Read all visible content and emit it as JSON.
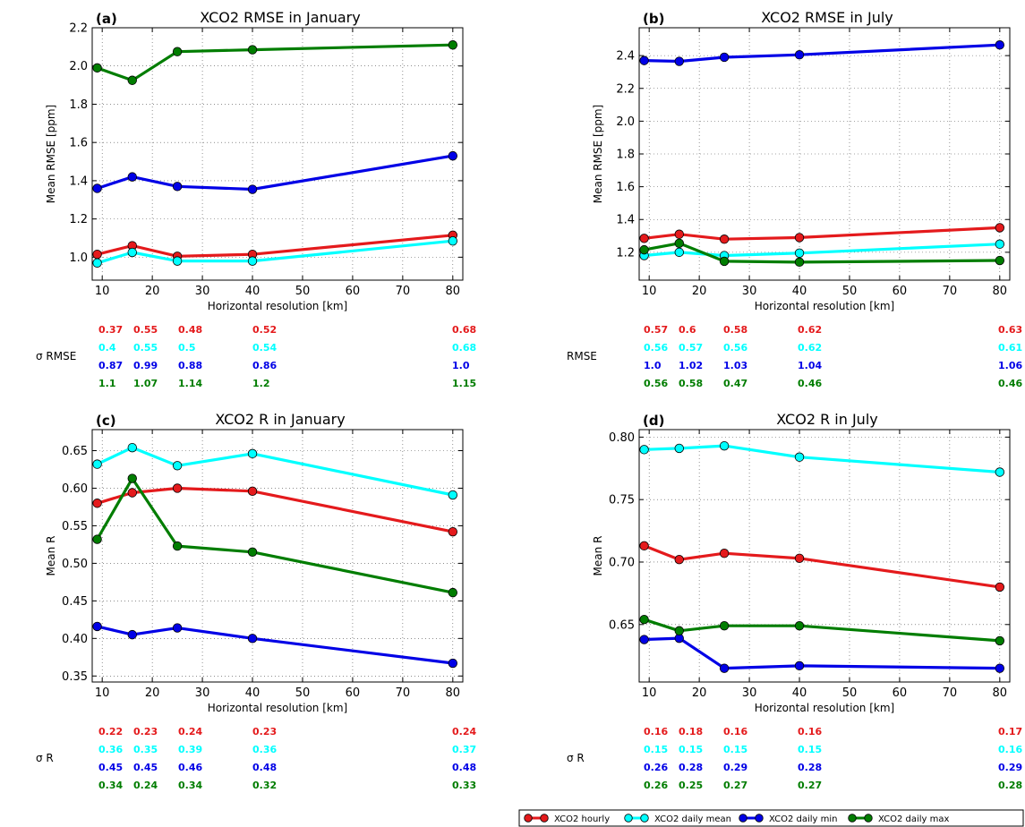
{
  "colors": {
    "hourly": "#e41a1c",
    "daily_mean": "#00ffff",
    "daily_min": "#0000e6",
    "daily_max": "#007d00"
  },
  "legend": {
    "items": [
      {
        "label": "XCO2 hourly",
        "color": "#e41a1c"
      },
      {
        "label": "XCO2 daily mean",
        "color": "#00ffff"
      },
      {
        "label": "XCO2 daily min",
        "color": "#0000e6"
      },
      {
        "label": "XCO2 daily max",
        "color": "#007d00"
      }
    ]
  },
  "chart_data": [
    {
      "panel": "(a)",
      "type": "line",
      "title": "XCO2 RMSE in January",
      "xlabel": "Horizontal resolution [km]",
      "ylabel": "Mean RMSE [ppm]",
      "xlim": [
        8,
        82
      ],
      "ylim": [
        0.88,
        2.2
      ],
      "xticks": [
        10,
        20,
        30,
        40,
        50,
        60,
        70,
        80
      ],
      "yticks": [
        1.0,
        1.2,
        1.4,
        1.6,
        1.8,
        2.0,
        2.2
      ],
      "ytick_labels": [
        "1.0",
        "1.2",
        "1.4",
        "1.6",
        "1.8",
        "2.0",
        "2.2"
      ],
      "grid": true,
      "x": [
        9,
        16,
        25,
        40,
        80
      ],
      "series": [
        {
          "name": "XCO2 hourly",
          "color": "#e41a1c",
          "values": [
            1.015,
            1.06,
            1.005,
            1.015,
            1.115
          ]
        },
        {
          "name": "XCO2 daily mean",
          "color": "#00ffff",
          "values": [
            0.97,
            1.025,
            0.98,
            0.98,
            1.085
          ]
        },
        {
          "name": "XCO2 daily min",
          "color": "#0000e6",
          "values": [
            1.36,
            1.42,
            1.37,
            1.355,
            1.53
          ]
        },
        {
          "name": "XCO2 daily max",
          "color": "#007d00",
          "values": [
            1.99,
            1.925,
            2.075,
            2.085,
            2.11
          ]
        }
      ],
      "sigma_label": "σ RMSE",
      "sigma": [
        {
          "color": "#e41a1c",
          "values": [
            "0.37",
            "0.55",
            "0.48",
            "0.52",
            "0.68"
          ]
        },
        {
          "color": "#00ffff",
          "values": [
            "0.4",
            "0.55",
            "0.5",
            "0.54",
            "0.68"
          ]
        },
        {
          "color": "#0000e6",
          "values": [
            "0.87",
            "0.99",
            "0.88",
            "0.86",
            "1.0"
          ]
        },
        {
          "color": "#007d00",
          "values": [
            "1.1",
            "1.07",
            "1.14",
            "1.2",
            "1.15"
          ]
        }
      ]
    },
    {
      "panel": "(b)",
      "type": "line",
      "title": "XCO2 RMSE in July",
      "xlabel": "Horizontal resolution [km]",
      "ylabel": "Mean RMSE [ppm]",
      "xlim": [
        8,
        82
      ],
      "ylim": [
        1.03,
        2.57
      ],
      "xticks": [
        10,
        20,
        30,
        40,
        50,
        60,
        70,
        80
      ],
      "yticks": [
        1.2,
        1.4,
        1.6,
        1.8,
        2.0,
        2.2,
        2.4
      ],
      "ytick_labels": [
        "1.2",
        "1.4",
        "1.6",
        "1.8",
        "2.0",
        "2.2",
        "2.4"
      ],
      "grid": true,
      "x": [
        9,
        16,
        25,
        40,
        80
      ],
      "series": [
        {
          "name": "XCO2 hourly",
          "color": "#e41a1c",
          "values": [
            1.285,
            1.31,
            1.28,
            1.29,
            1.35
          ]
        },
        {
          "name": "XCO2 daily mean",
          "color": "#00ffff",
          "values": [
            1.18,
            1.2,
            1.18,
            1.195,
            1.25
          ]
        },
        {
          "name": "XCO2 daily min",
          "color": "#0000e6",
          "values": [
            2.37,
            2.365,
            2.39,
            2.405,
            2.465
          ]
        },
        {
          "name": "XCO2 daily max",
          "color": "#007d00",
          "values": [
            1.215,
            1.255,
            1.145,
            1.14,
            1.15
          ]
        }
      ],
      "sigma_label": "RMSE",
      "sigma": [
        {
          "color": "#e41a1c",
          "values": [
            "0.57",
            "0.6",
            "0.58",
            "0.62",
            "0.63"
          ]
        },
        {
          "color": "#00ffff",
          "values": [
            "0.56",
            "0.57",
            "0.56",
            "0.62",
            "0.61"
          ]
        },
        {
          "color": "#0000e6",
          "values": [
            "1.0",
            "1.02",
            "1.03",
            "1.04",
            "1.06"
          ]
        },
        {
          "color": "#007d00",
          "values": [
            "0.56",
            "0.58",
            "0.47",
            "0.46",
            "0.46"
          ]
        }
      ]
    },
    {
      "panel": "(c)",
      "type": "line",
      "title": "XCO2 R in January",
      "xlabel": "Horizontal resolution [km]",
      "ylabel": "Mean R",
      "xlim": [
        8,
        82
      ],
      "ylim": [
        0.342,
        0.678
      ],
      "xticks": [
        10,
        20,
        30,
        40,
        50,
        60,
        70,
        80
      ],
      "yticks": [
        0.35,
        0.4,
        0.45,
        0.5,
        0.55,
        0.6,
        0.65
      ],
      "ytick_labels": [
        "0.35",
        "0.40",
        "0.45",
        "0.50",
        "0.55",
        "0.60",
        "0.65"
      ],
      "grid": true,
      "x": [
        9,
        16,
        25,
        40,
        80
      ],
      "series": [
        {
          "name": "XCO2 hourly",
          "color": "#e41a1c",
          "values": [
            0.58,
            0.594,
            0.6,
            0.596,
            0.542
          ]
        },
        {
          "name": "XCO2 daily mean",
          "color": "#00ffff",
          "values": [
            0.632,
            0.654,
            0.63,
            0.646,
            0.591
          ]
        },
        {
          "name": "XCO2 daily min",
          "color": "#0000e6",
          "values": [
            0.416,
            0.405,
            0.414,
            0.4,
            0.367
          ]
        },
        {
          "name": "XCO2 daily max",
          "color": "#007d00",
          "values": [
            0.532,
            0.613,
            0.523,
            0.515,
            0.461
          ]
        }
      ],
      "sigma_label": "σ R",
      "sigma": [
        {
          "color": "#e41a1c",
          "values": [
            "0.22",
            "0.23",
            "0.24",
            "0.23",
            "0.24"
          ]
        },
        {
          "color": "#00ffff",
          "values": [
            "0.36",
            "0.35",
            "0.39",
            "0.36",
            "0.37"
          ]
        },
        {
          "color": "#0000e6",
          "values": [
            "0.45",
            "0.45",
            "0.46",
            "0.48",
            "0.48"
          ]
        },
        {
          "color": "#007d00",
          "values": [
            "0.34",
            "0.24",
            "0.34",
            "0.32",
            "0.33"
          ]
        }
      ]
    },
    {
      "panel": "(d)",
      "type": "line",
      "title": "XCO2 R in July",
      "xlabel": "Horizontal resolution [km]",
      "ylabel": "Mean R",
      "xlim": [
        8,
        82
      ],
      "ylim": [
        0.604,
        0.806
      ],
      "xticks": [
        10,
        20,
        30,
        40,
        50,
        60,
        70,
        80
      ],
      "yticks": [
        0.65,
        0.7,
        0.75,
        0.8
      ],
      "ytick_labels": [
        "0.65",
        "0.70",
        "0.75",
        "0.80"
      ],
      "grid": true,
      "x": [
        9,
        16,
        25,
        40,
        80
      ],
      "series": [
        {
          "name": "XCO2 hourly",
          "color": "#e41a1c",
          "values": [
            0.713,
            0.702,
            0.707,
            0.703,
            0.68
          ]
        },
        {
          "name": "XCO2 daily mean",
          "color": "#00ffff",
          "values": [
            0.79,
            0.791,
            0.793,
            0.784,
            0.772
          ]
        },
        {
          "name": "XCO2 daily min",
          "color": "#0000e6",
          "values": [
            0.638,
            0.639,
            0.615,
            0.617,
            0.615
          ]
        },
        {
          "name": "XCO2 daily max",
          "color": "#007d00",
          "values": [
            0.654,
            0.645,
            0.649,
            0.649,
            0.637
          ]
        }
      ],
      "sigma_label": "σ R",
      "sigma": [
        {
          "color": "#e41a1c",
          "values": [
            "0.16",
            "0.18",
            "0.16",
            "0.16",
            "0.17"
          ]
        },
        {
          "color": "#00ffff",
          "values": [
            "0.15",
            "0.15",
            "0.15",
            "0.15",
            "0.16"
          ]
        },
        {
          "color": "#0000e6",
          "values": [
            "0.26",
            "0.28",
            "0.29",
            "0.28",
            "0.29"
          ]
        },
        {
          "color": "#007d00",
          "values": [
            "0.26",
            "0.25",
            "0.27",
            "0.27",
            "0.28"
          ]
        }
      ]
    }
  ]
}
